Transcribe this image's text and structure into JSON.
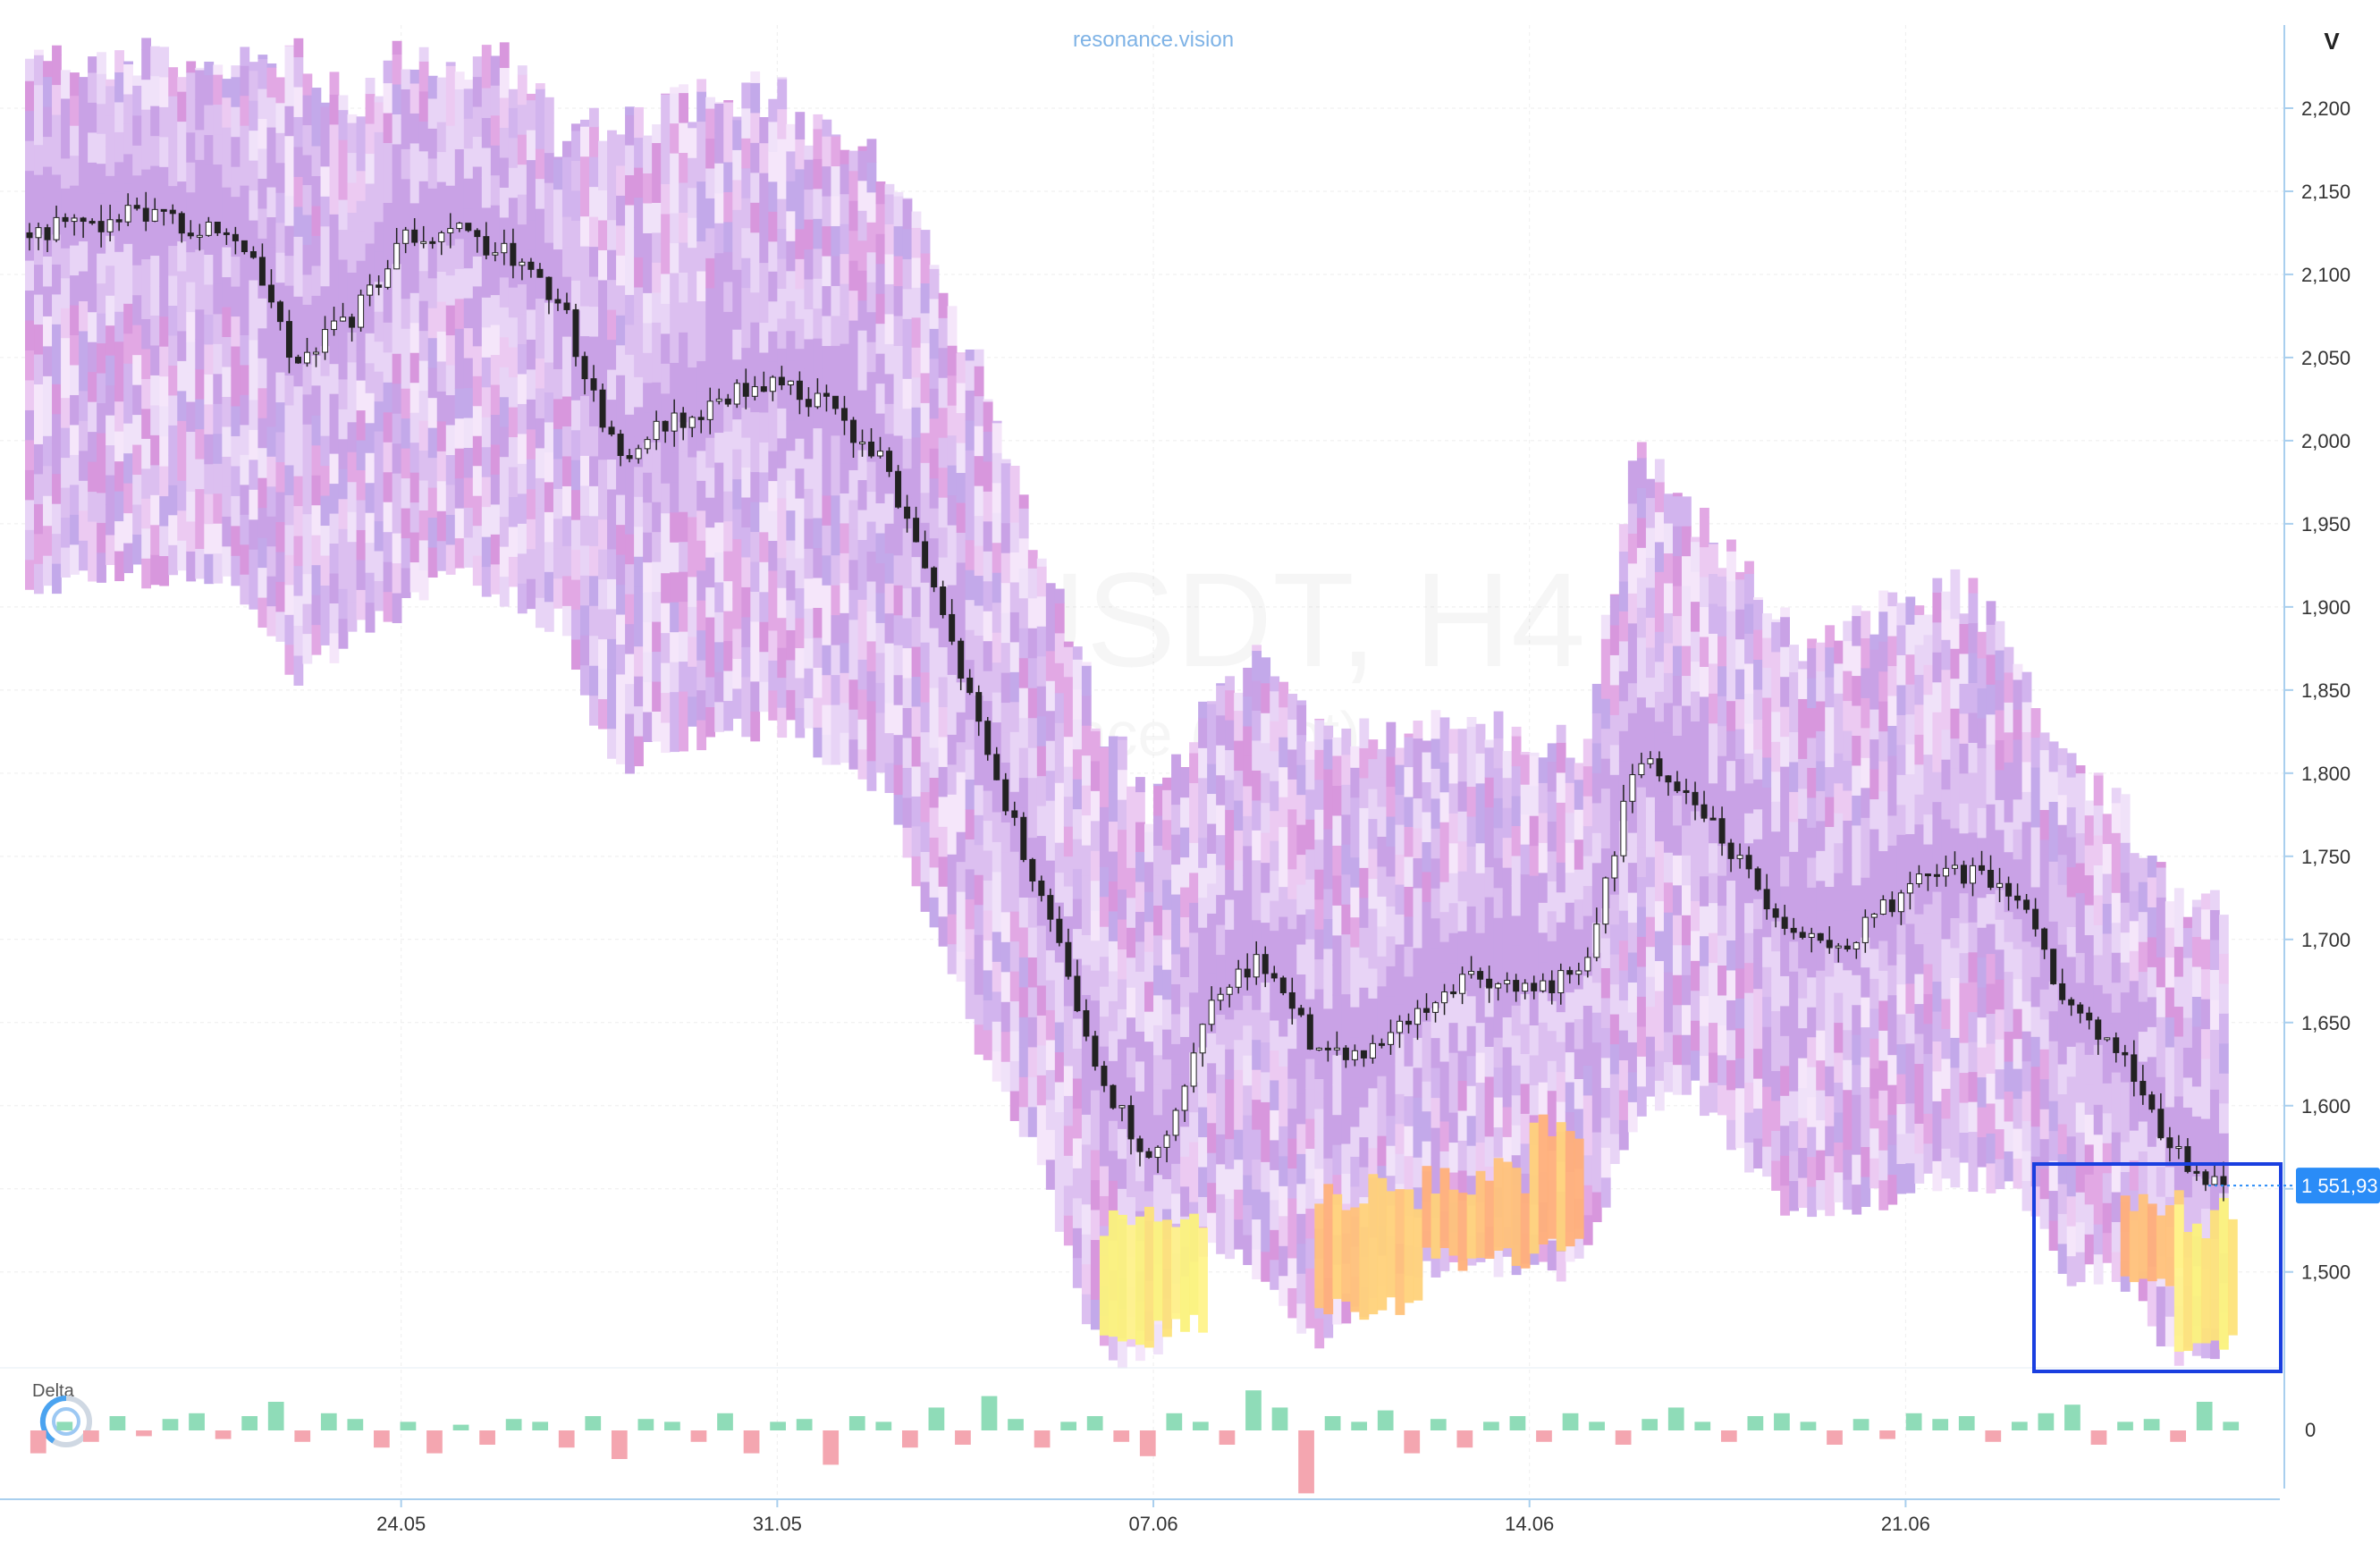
{
  "watermark": {
    "symbol": "ETHUSDT, H4",
    "exchange": "Binance (Spot)"
  },
  "brand": "resonance.vision",
  "axis_header": "V",
  "delta_panel": {
    "label": "Delta",
    "zero_label": "0"
  },
  "last_price": {
    "label": "1 551,93",
    "value": 1551.93
  },
  "colors": {
    "candle_up": "#ffffff",
    "candle_down": "#222222",
    "delta_pos": "#8fdcb8",
    "delta_neg": "#f4a6b0",
    "price_tag": "#2a8cf7",
    "highlight_box": "#1a3fe0",
    "axis": "#a9cfee"
  },
  "chart_data": {
    "type": "heatmap",
    "title": "",
    "xlabel": "",
    "ylabel": "",
    "x_ticks": [
      "24.05",
      "31.05",
      "07.06",
      "14.06",
      "21.06"
    ],
    "y_ticks": [
      1500,
      1550,
      1600,
      1650,
      1700,
      1750,
      1800,
      1850,
      1900,
      1950,
      2000,
      2050,
      2100,
      2150,
      2200
    ],
    "y_tick_labels": [
      "1,500",
      "1,550",
      "1,600",
      "1,650",
      "1,700",
      "1,750",
      "1,800",
      "1,850",
      "1,900",
      "1,950",
      "2,000",
      "2,050",
      "2,100",
      "2,150",
      "2,200"
    ],
    "ylim": [
      1445,
      2250
    ],
    "x_range": [
      "17.05",
      "27.06"
    ],
    "grid": true,
    "price_path": [
      {
        "t": "17.05",
        "p": 2125
      },
      {
        "t": "18.05",
        "p": 2130
      },
      {
        "t": "19.05",
        "p": 2135
      },
      {
        "t": "20.05",
        "p": 2130
      },
      {
        "t": "21.05",
        "p": 2125
      },
      {
        "t": "22.05",
        "p": 2050
      },
      {
        "t": "23.05",
        "p": 2070
      },
      {
        "t": "24.05",
        "p": 2120
      },
      {
        "t": "25.05",
        "p": 2130
      },
      {
        "t": "26.05",
        "p": 2110
      },
      {
        "t": "27.05",
        "p": 2080
      },
      {
        "t": "28.05",
        "p": 1990
      },
      {
        "t": "29.05",
        "p": 2010
      },
      {
        "t": "30.05",
        "p": 2025
      },
      {
        "t": "31.05",
        "p": 2035
      },
      {
        "t": "01.06",
        "p": 2020
      },
      {
        "t": "02.06",
        "p": 1985
      },
      {
        "t": "03.06",
        "p": 1900
      },
      {
        "t": "04.06",
        "p": 1800
      },
      {
        "t": "05.06",
        "p": 1720
      },
      {
        "t": "06.06",
        "p": 1620
      },
      {
        "t": "07.06",
        "p": 1560
      },
      {
        "t": "08.06",
        "p": 1660
      },
      {
        "t": "09.06",
        "p": 1690
      },
      {
        "t": "10.06",
        "p": 1635
      },
      {
        "t": "11.06",
        "p": 1630
      },
      {
        "t": "12.06",
        "p": 1660
      },
      {
        "t": "13.06",
        "p": 1680
      },
      {
        "t": "14.06",
        "p": 1670
      },
      {
        "t": "15.06",
        "p": 1680
      },
      {
        "t": "16.06",
        "p": 1810
      },
      {
        "t": "17.06",
        "p": 1790
      },
      {
        "t": "18.06",
        "p": 1740
      },
      {
        "t": "19.06",
        "p": 1700
      },
      {
        "t": "20.06",
        "p": 1700
      },
      {
        "t": "21.06",
        "p": 1730
      },
      {
        "t": "22.06",
        "p": 1740
      },
      {
        "t": "23.06",
        "p": 1730
      },
      {
        "t": "24.06",
        "p": 1660
      },
      {
        "t": "25.06",
        "p": 1630
      },
      {
        "t": "26.06",
        "p": 1570
      },
      {
        "t": "27.06",
        "p": 1552
      }
    ],
    "volume_profile_top": [
      {
        "t": "17.05",
        "p": 2230
      },
      {
        "t": "22.05",
        "p": 2230
      },
      {
        "t": "23.05",
        "p": 2200
      },
      {
        "t": "24.05",
        "p": 2230
      },
      {
        "t": "26.05",
        "p": 2230
      },
      {
        "t": "27.05",
        "p": 2180
      },
      {
        "t": "29.05",
        "p": 2200
      },
      {
        "t": "31.05",
        "p": 2210
      },
      {
        "t": "01.06",
        "p": 2180
      },
      {
        "t": "02.06",
        "p": 2170
      },
      {
        "t": "03.06",
        "p": 2100
      },
      {
        "t": "04.06",
        "p": 2020
      },
      {
        "t": "05.06",
        "p": 1920
      },
      {
        "t": "06.06",
        "p": 1830
      },
      {
        "t": "07.06",
        "p": 1780
      },
      {
        "t": "08.06",
        "p": 1840
      },
      {
        "t": "09.06",
        "p": 1870
      },
      {
        "t": "10.06",
        "p": 1820
      },
      {
        "t": "12.06",
        "p": 1830
      },
      {
        "t": "14.06",
        "p": 1820
      },
      {
        "t": "15.06",
        "p": 1820
      },
      {
        "t": "16.06",
        "p": 1990
      },
      {
        "t": "17.06",
        "p": 1960
      },
      {
        "t": "19.06",
        "p": 1880
      },
      {
        "t": "21.06",
        "p": 1900
      },
      {
        "t": "22.06",
        "p": 1910
      },
      {
        "t": "23.06",
        "p": 1880
      },
      {
        "t": "24.06",
        "p": 1800
      },
      {
        "t": "25.06",
        "p": 1780
      },
      {
        "t": "26.06",
        "p": 1720
      },
      {
        "t": "27.06",
        "p": 1720
      }
    ],
    "volume_profile_bottom": [
      {
        "t": "17.05",
        "p": 1910
      },
      {
        "t": "19.05",
        "p": 1920
      },
      {
        "t": "21.05",
        "p": 1910
      },
      {
        "t": "22.05",
        "p": 1860
      },
      {
        "t": "23.05",
        "p": 1880
      },
      {
        "t": "24.05",
        "p": 1900
      },
      {
        "t": "25.05",
        "p": 1920
      },
      {
        "t": "27.05",
        "p": 1890
      },
      {
        "t": "28.05",
        "p": 1800
      },
      {
        "t": "29.05",
        "p": 1820
      },
      {
        "t": "31.05",
        "p": 1830
      },
      {
        "t": "01.06",
        "p": 1810
      },
      {
        "t": "02.06",
        "p": 1790
      },
      {
        "t": "03.06",
        "p": 1700
      },
      {
        "t": "04.06",
        "p": 1620
      },
      {
        "t": "05.06",
        "p": 1560
      },
      {
        "t": "06.06",
        "p": 1450
      },
      {
        "t": "07.06",
        "p": 1450
      },
      {
        "t": "08.06",
        "p": 1520
      },
      {
        "t": "09.06",
        "p": 1500
      },
      {
        "t": "10.06",
        "p": 1460
      },
      {
        "t": "11.06",
        "p": 1480
      },
      {
        "t": "12.06",
        "p": 1500
      },
      {
        "t": "13.06",
        "p": 1510
      },
      {
        "t": "14.06",
        "p": 1500
      },
      {
        "t": "15.06",
        "p": 1500
      },
      {
        "t": "16.06",
        "p": 1600
      },
      {
        "t": "17.06",
        "p": 1610
      },
      {
        "t": "18.06",
        "p": 1570
      },
      {
        "t": "19.06",
        "p": 1530
      },
      {
        "t": "20.06",
        "p": 1540
      },
      {
        "t": "21.06",
        "p": 1550
      },
      {
        "t": "22.06",
        "p": 1560
      },
      {
        "t": "23.06",
        "p": 1550
      },
      {
        "t": "24.06",
        "p": 1500
      },
      {
        "t": "25.06",
        "p": 1500
      },
      {
        "t": "26.06",
        "p": 1450
      },
      {
        "t": "27.06",
        "p": 1455
      }
    ],
    "hot_zones": [
      {
        "name": "",
        "t_from": "06.06",
        "t_to": "07.06",
        "p_from": 1450,
        "p_to": 1545,
        "level": "high"
      },
      {
        "name": "",
        "t_from": "07.06",
        "t_to": "08.06",
        "p_from": 1460,
        "p_to": 1540,
        "level": "high"
      },
      {
        "name": "",
        "t_from": "10.06",
        "t_to": "12.06",
        "p_from": 1470,
        "p_to": 1560,
        "level": "mid"
      },
      {
        "name": "",
        "t_from": "12.06",
        "t_to": "14.06",
        "p_from": 1500,
        "p_to": 1570,
        "level": "mid"
      },
      {
        "name": "",
        "t_from": "14.06",
        "t_to": "15.06",
        "p_from": 1510,
        "p_to": 1600,
        "level": "mid"
      },
      {
        "name": "",
        "t_from": "25.06",
        "t_to": "26.06",
        "p_from": 1490,
        "p_to": 1555,
        "level": "mid"
      },
      {
        "name": "",
        "t_from": "26.06",
        "t_to": "27.06",
        "p_from": 1452,
        "p_to": 1545,
        "level": "high"
      }
    ],
    "delta": [
      -8,
      3,
      -4,
      5,
      -2,
      4,
      6,
      -3,
      5,
      10,
      -4,
      6,
      4,
      -6,
      3,
      -8,
      2,
      -5,
      4,
      3,
      -6,
      5,
      -10,
      4,
      3,
      -4,
      6,
      -8,
      3,
      4,
      -12,
      5,
      3,
      -6,
      8,
      -5,
      12,
      4,
      -6,
      3,
      5,
      -4,
      -9,
      6,
      3,
      -5,
      14,
      8,
      -22,
      5,
      3,
      7,
      -8,
      4,
      -6,
      3,
      5,
      -4,
      6,
      3,
      -5,
      4,
      8,
      3,
      -4,
      5,
      6,
      3,
      -5,
      4,
      -3,
      6,
      4,
      5,
      -4,
      3,
      6,
      9,
      -5,
      3,
      4,
      -4,
      10,
      3
    ]
  }
}
